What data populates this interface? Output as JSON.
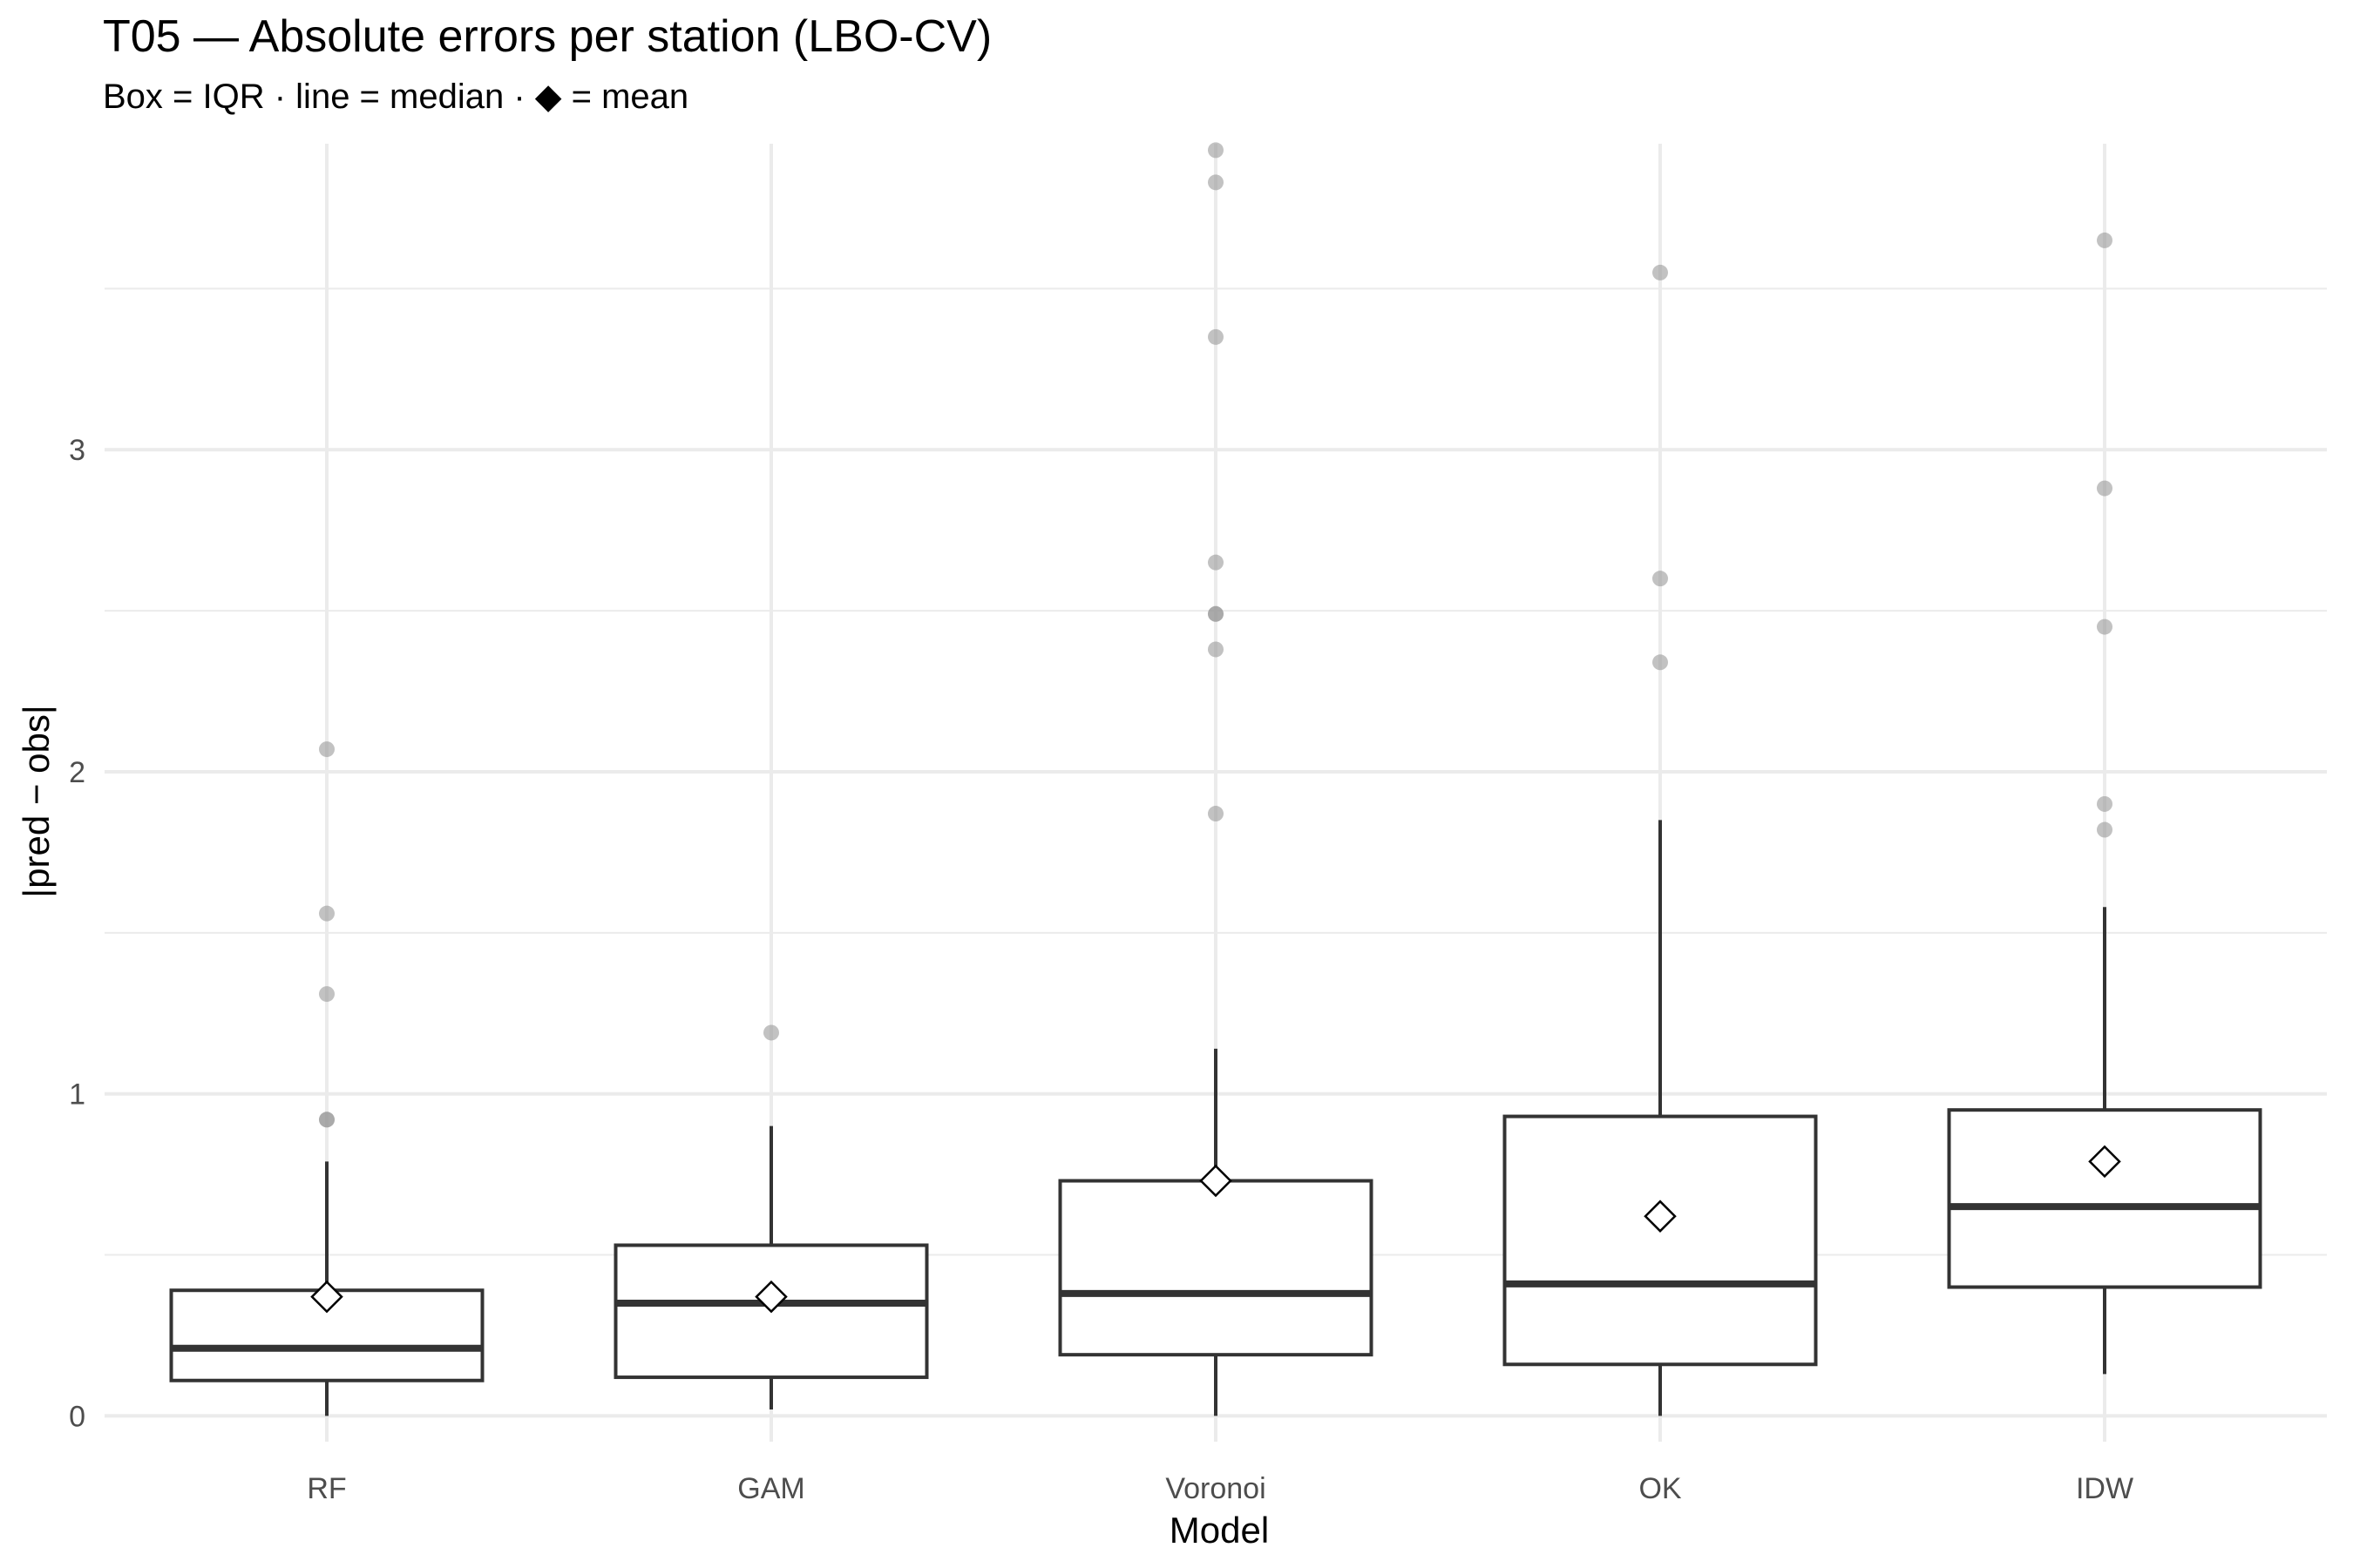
{
  "chart_data": {
    "type": "box",
    "title": "T05 — Absolute errors per station (LBO-CV)",
    "subtitle": "Box = IQR · line = median · ◆ = mean",
    "xlabel": "Model",
    "ylabel": "|pred − obs|",
    "ylim": [
      -0.08,
      3.95
    ],
    "yticks": [
      0,
      1,
      2,
      3
    ],
    "grid": true,
    "legend": "none",
    "colors": {
      "box_line": "#333333",
      "outlier": "#999999",
      "grid": "#ebebeb",
      "mean_fill": "#ffffff"
    },
    "categories": [
      "RF",
      "GAM",
      "Voronoi",
      "OK",
      "IDW"
    ],
    "boxes": [
      {
        "name": "RF",
        "whisker_low": 0.0,
        "q1": 0.11,
        "median": 0.21,
        "q3": 0.39,
        "whisker_high": 0.79,
        "mean": 0.37,
        "outliers": [
          0.92,
          0.92,
          1.31,
          1.56,
          2.07
        ]
      },
      {
        "name": "GAM",
        "whisker_low": 0.02,
        "q1": 0.12,
        "median": 0.35,
        "q3": 0.53,
        "whisker_high": 0.9,
        "mean": 0.37,
        "outliers": [
          1.19
        ]
      },
      {
        "name": "Voronoi",
        "whisker_low": 0.0,
        "q1": 0.19,
        "median": 0.38,
        "q3": 0.73,
        "whisker_high": 1.14,
        "mean": 0.73,
        "outliers": [
          1.87,
          2.38,
          2.49,
          2.49,
          2.65,
          3.35,
          3.83,
          3.93
        ]
      },
      {
        "name": "OK",
        "whisker_low": 0.0,
        "q1": 0.16,
        "median": 0.41,
        "q3": 0.93,
        "whisker_high": 1.85,
        "mean": 0.62,
        "outliers": [
          2.34,
          2.6,
          3.55
        ]
      },
      {
        "name": "IDW",
        "whisker_low": 0.13,
        "q1": 0.4,
        "median": 0.65,
        "q3": 0.95,
        "whisker_high": 1.58,
        "mean": 0.79,
        "outliers": [
          1.82,
          1.9,
          2.45,
          2.88,
          3.65
        ]
      }
    ]
  }
}
